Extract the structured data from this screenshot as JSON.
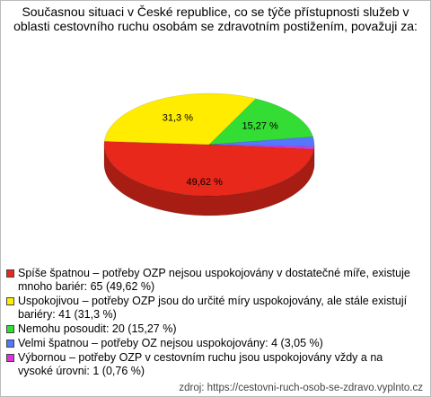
{
  "chart_data": {
    "type": "pie3d",
    "title": "Současnou situaci v České republice, co se týče přístupnosti služeb v oblasti cestovního ruchu osobám se zdravotním postižením, považuji za:",
    "categories": [
      "Spíše špatnou – potřeby OZP nejsou uspokojovány v dostatečné míře, existuje mnoho bariér: 65 (49,62 %)",
      "Uspokojivou – potřeby OZP jsou do určité míry uspokojovány, ale stále existují bariéry: 41 (31,3 %)",
      "Nemohu posoudit: 20 (15,27 %)",
      "Velmi špatnou – potřeby OZ nejsou uspokojovány: 4 (3,05 %)",
      "Výbornou – potřeby OZP v cestovním ruchu jsou uspokojovány vždy a na vysoké úrovni: 1 (0,76 %)"
    ],
    "values": [
      49.62,
      31.3,
      15.27,
      3.05,
      0.76
    ],
    "value_labels": [
      "49,62 %",
      "31,3 %",
      "15,27 %",
      null,
      null
    ],
    "colors": [
      "#e8281a",
      "#ffec00",
      "#33dd33",
      "#5577ff",
      "#dd33dd"
    ],
    "source": "zdroj: https://cestovni-ruch-osob-se-zdravo.vyplnto.cz"
  }
}
